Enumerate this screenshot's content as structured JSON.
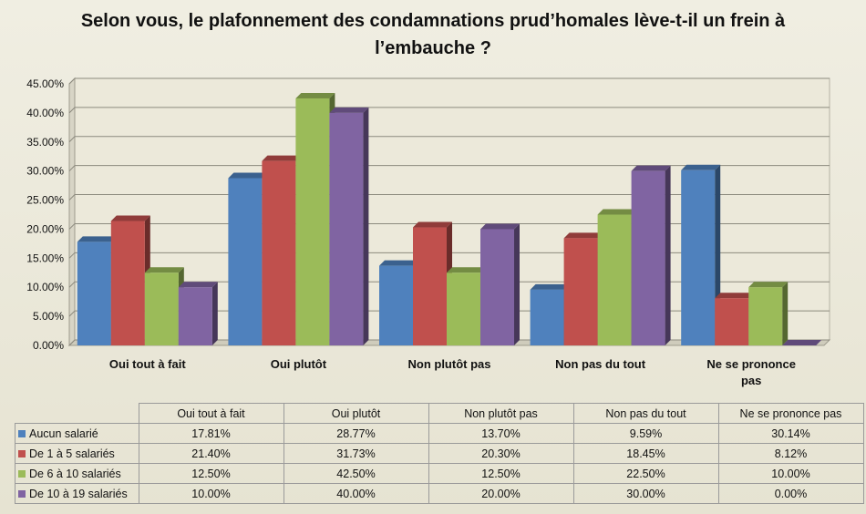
{
  "chart_data": {
    "type": "bar",
    "title": "Selon vous, le plafonnement des condamnations prud’homales lève-t-il un frein à l’embauche ?",
    "categories": [
      "Oui tout à fait",
      "Oui plutôt",
      "Non plutôt pas",
      "Non pas du tout",
      "Ne se prononce pas"
    ],
    "series": [
      {
        "name": "Aucun salarié",
        "values": [
          17.81,
          28.77,
          13.7,
          9.59,
          30.14
        ],
        "labels": [
          "17.81%",
          "28.77%",
          "13.70%",
          "9.59%",
          "30.14%"
        ],
        "color": "#4f81bd"
      },
      {
        "name": "De 1 à 5 salariés",
        "values": [
          21.4,
          31.73,
          20.3,
          18.45,
          8.12
        ],
        "labels": [
          "21.40%",
          "31.73%",
          "20.30%",
          "18.45%",
          "8.12%"
        ],
        "color": "#c0504d"
      },
      {
        "name": "De 6 à 10 salariés",
        "values": [
          12.5,
          42.5,
          12.5,
          22.5,
          10.0
        ],
        "labels": [
          "12.50%",
          "42.50%",
          "12.50%",
          "22.50%",
          "10.00%"
        ],
        "color": "#9bbb59"
      },
      {
        "name": "De 10 à 19 salariés",
        "values": [
          10.0,
          40.0,
          20.0,
          30.0,
          0.0
        ],
        "labels": [
          "10.00%",
          "40.00%",
          "20.00%",
          "30.00%",
          "0.00%"
        ],
        "color": "#8064a2"
      }
    ],
    "yticks": [
      "0.00%",
      "5.00%",
      "10.00%",
      "15.00%",
      "20.00%",
      "25.00%",
      "30.00%",
      "35.00%",
      "40.00%",
      "45.00%"
    ],
    "ylim": [
      0,
      45
    ],
    "grid": true,
    "legend": "data table below chart",
    "xlabel": "",
    "ylabel": ""
  }
}
